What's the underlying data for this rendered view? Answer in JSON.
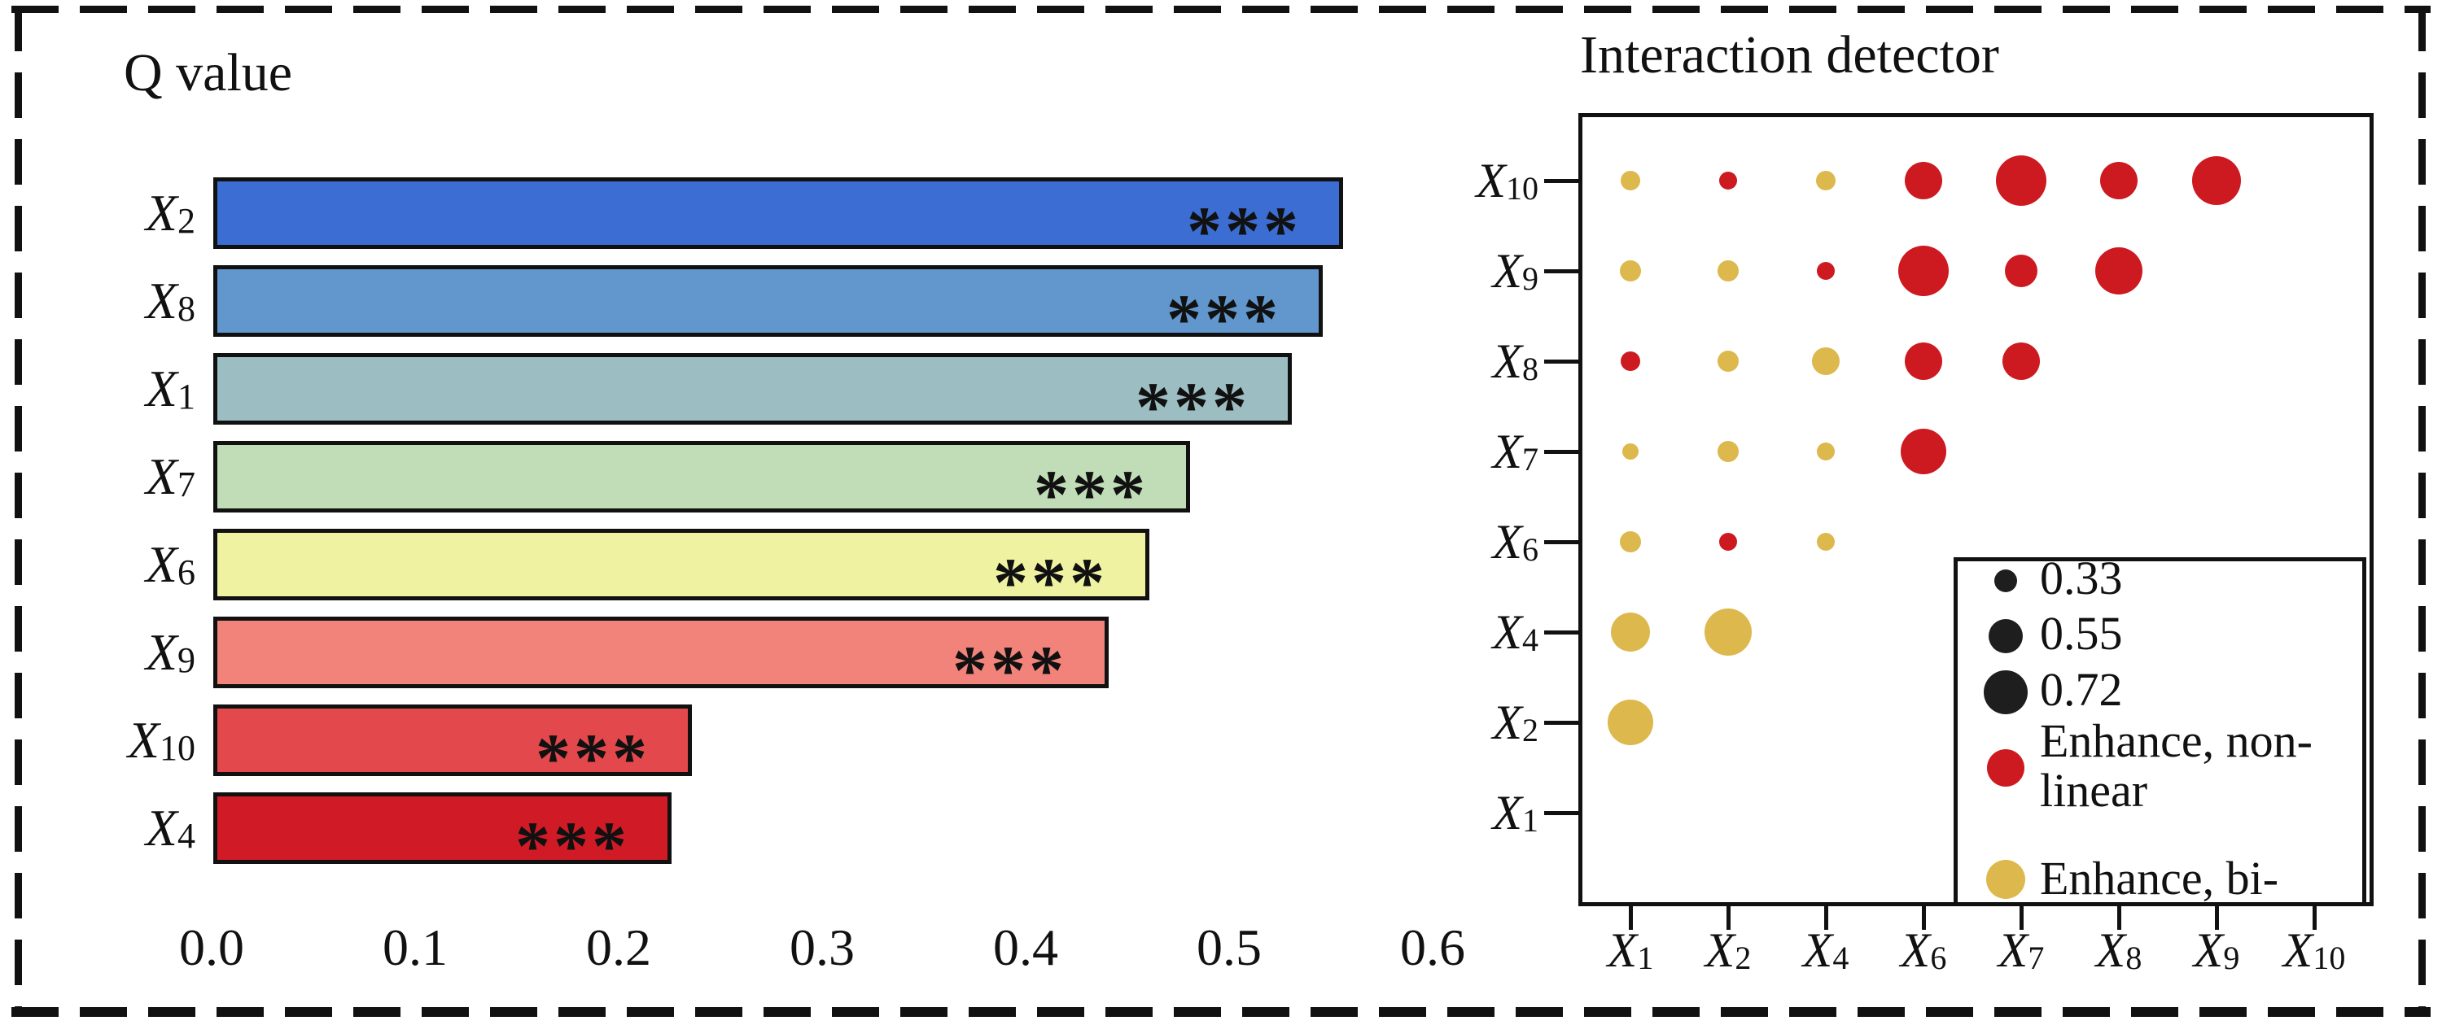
{
  "colors": {
    "background": "#ffffff",
    "ink": "#111111",
    "dot_nonlinear": "#cc1a20",
    "dot_bivariate": "#dcb84d",
    "legend_size_dot": "#1e1e1e"
  },
  "chart_data": [
    {
      "type": "bar",
      "orientation": "horizontal",
      "title": "Q value",
      "categories": [
        {
          "base": "X",
          "sub": "2"
        },
        {
          "base": "X",
          "sub": "8"
        },
        {
          "base": "X",
          "sub": "1"
        },
        {
          "base": "X",
          "sub": "7"
        },
        {
          "base": "X",
          "sub": "6"
        },
        {
          "base": "X",
          "sub": "9"
        },
        {
          "base": "X",
          "sub": "10"
        },
        {
          "base": "X",
          "sub": "4"
        }
      ],
      "values": [
        0.555,
        0.545,
        0.53,
        0.48,
        0.46,
        0.44,
        0.235,
        0.225
      ],
      "bar_colors": [
        "#3c6dd2",
        "#6197cd",
        "#9cbec2",
        "#c0ddb7",
        "#eff3a1",
        "#f1837a",
        "#e2484c",
        "#d01b27"
      ],
      "annotation": "***",
      "xlabel": "",
      "ylabel": "",
      "xlim": [
        0,
        0.6
      ],
      "xticks": [
        "0.0",
        "0.1",
        "0.2",
        "0.3",
        "0.4",
        "0.5",
        "0.6"
      ],
      "grid": false
    },
    {
      "type": "bubble-matrix",
      "title": "Interaction detector",
      "x_categories": [
        {
          "base": "X",
          "sub": "1"
        },
        {
          "base": "X",
          "sub": "2"
        },
        {
          "base": "X",
          "sub": "4"
        },
        {
          "base": "X",
          "sub": "6"
        },
        {
          "base": "X",
          "sub": "7"
        },
        {
          "base": "X",
          "sub": "8"
        },
        {
          "base": "X",
          "sub": "9"
        },
        {
          "base": "X",
          "sub": "10"
        }
      ],
      "y_categories": [
        {
          "base": "X",
          "sub": "10"
        },
        {
          "base": "X",
          "sub": "9"
        },
        {
          "base": "X",
          "sub": "8"
        },
        {
          "base": "X",
          "sub": "7"
        },
        {
          "base": "X",
          "sub": "6"
        },
        {
          "base": "X",
          "sub": "4"
        },
        {
          "base": "X",
          "sub": "2"
        },
        {
          "base": "X",
          "sub": "1"
        }
      ],
      "points": [
        {
          "x": "1",
          "y": "10",
          "type": "bivariate",
          "value": 0.25,
          "radius": 12
        },
        {
          "x": "2",
          "y": "10",
          "type": "nonlinear",
          "value": 0.22,
          "radius": 11
        },
        {
          "x": "4",
          "y": "10",
          "type": "bivariate",
          "value": 0.25,
          "radius": 12
        },
        {
          "x": "6",
          "y": "10",
          "type": "nonlinear",
          "value": 0.6,
          "radius": 23
        },
        {
          "x": "7",
          "y": "10",
          "type": "nonlinear",
          "value": 0.85,
          "radius": 31
        },
        {
          "x": "8",
          "y": "10",
          "type": "nonlinear",
          "value": 0.6,
          "radius": 23
        },
        {
          "x": "9",
          "y": "10",
          "type": "nonlinear",
          "value": 0.81,
          "radius": 30
        },
        {
          "x": "1",
          "y": "9",
          "type": "bivariate",
          "value": 0.28,
          "radius": 13
        },
        {
          "x": "2",
          "y": "9",
          "type": "bivariate",
          "value": 0.28,
          "radius": 13
        },
        {
          "x": "4",
          "y": "9",
          "type": "nonlinear",
          "value": 0.22,
          "radius": 11
        },
        {
          "x": "6",
          "y": "9",
          "type": "nonlinear",
          "value": 0.85,
          "radius": 31
        },
        {
          "x": "7",
          "y": "9",
          "type": "nonlinear",
          "value": 0.5,
          "radius": 20
        },
        {
          "x": "8",
          "y": "9",
          "type": "nonlinear",
          "value": 0.78,
          "radius": 29
        },
        {
          "x": "1",
          "y": "8",
          "type": "nonlinear",
          "value": 0.25,
          "radius": 12
        },
        {
          "x": "2",
          "y": "8",
          "type": "bivariate",
          "value": 0.28,
          "radius": 13
        },
        {
          "x": "4",
          "y": "8",
          "type": "bivariate",
          "value": 0.41,
          "radius": 17
        },
        {
          "x": "6",
          "y": "8",
          "type": "nonlinear",
          "value": 0.6,
          "radius": 23
        },
        {
          "x": "7",
          "y": "8",
          "type": "nonlinear",
          "value": 0.6,
          "radius": 23
        },
        {
          "x": "1",
          "y": "7",
          "type": "bivariate",
          "value": 0.19,
          "radius": 10
        },
        {
          "x": "2",
          "y": "7",
          "type": "bivariate",
          "value": 0.28,
          "radius": 13
        },
        {
          "x": "4",
          "y": "7",
          "type": "bivariate",
          "value": 0.22,
          "radius": 11
        },
        {
          "x": "6",
          "y": "7",
          "type": "nonlinear",
          "value": 0.75,
          "radius": 28
        },
        {
          "x": "1",
          "y": "6",
          "type": "bivariate",
          "value": 0.28,
          "radius": 13
        },
        {
          "x": "2",
          "y": "6",
          "type": "nonlinear",
          "value": 0.22,
          "radius": 11
        },
        {
          "x": "4",
          "y": "6",
          "type": "bivariate",
          "value": 0.22,
          "radius": 11
        },
        {
          "x": "1",
          "y": "4",
          "type": "bivariate",
          "value": 0.63,
          "radius": 24
        },
        {
          "x": "2",
          "y": "4",
          "type": "bivariate",
          "value": 0.78,
          "radius": 29
        },
        {
          "x": "1",
          "y": "2",
          "type": "bivariate",
          "value": 0.75,
          "radius": 28
        }
      ],
      "legend": {
        "position": "bottom-right",
        "sizes": [
          {
            "label": "0.33",
            "radius": 14
          },
          {
            "label": "0.55",
            "radius": 21
          },
          {
            "label": "0.72",
            "radius": 27
          }
        ],
        "types": [
          {
            "label": "Enhance, non-linear",
            "color_key": "dot_nonlinear",
            "radius": 23
          },
          {
            "label": "Enhance, bi-",
            "color_key": "dot_bivariate",
            "radius": 24
          }
        ]
      }
    }
  ]
}
